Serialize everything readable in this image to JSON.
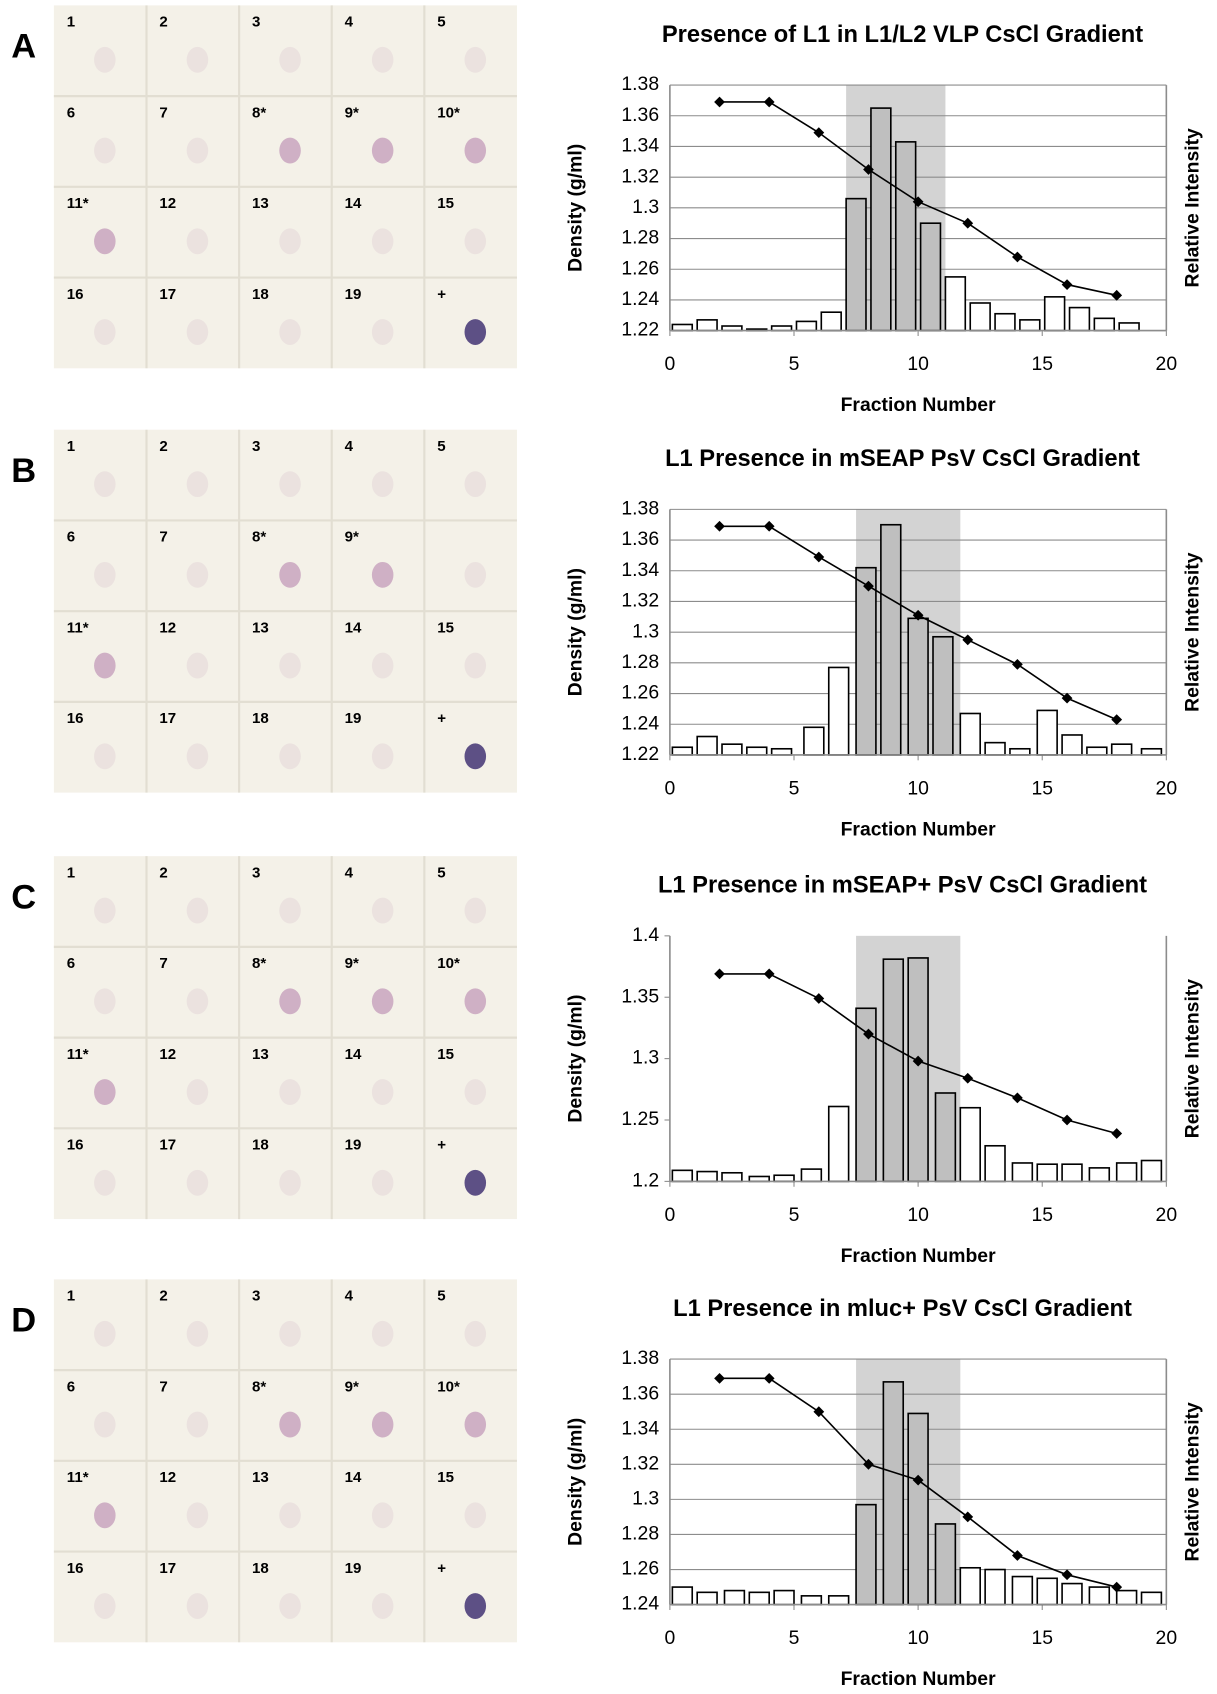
{
  "blots": [
    {
      "letter": "A",
      "labels": [
        "1",
        "2",
        "3",
        "4",
        "5",
        "6",
        "7",
        "8*",
        "9*",
        "10*",
        "11*",
        "12",
        "13",
        "14",
        "15",
        "16",
        "17",
        "18",
        "19",
        "+"
      ]
    },
    {
      "letter": "B",
      "labels": [
        "1",
        "2",
        "3",
        "4",
        "5",
        "6",
        "7",
        "8*",
        "9*",
        null,
        "11*",
        "12",
        "13",
        "14",
        "15",
        "16",
        "17",
        "18",
        "19",
        "+"
      ]
    },
    {
      "letter": "C",
      "labels": [
        "1",
        "2",
        "3",
        "4",
        "5",
        "6",
        "7",
        "8*",
        "9*",
        "10*",
        "11*",
        "12",
        "13",
        "14",
        "15",
        "16",
        "17",
        "18",
        "19",
        "+"
      ]
    },
    {
      "letter": "D",
      "labels": [
        "1",
        "2",
        "3",
        "4",
        "5",
        "6",
        "7",
        "8*",
        "9*",
        "10*",
        "11*",
        "12",
        "13",
        "14",
        "15",
        "16",
        "17",
        "18",
        "19",
        "+"
      ]
    }
  ],
  "chart_data": [
    {
      "type": "bar-line",
      "title": "Presence of L1 in L1/L2 VLP CsCl Gradient",
      "x_label": "Fraction Number",
      "y_label": "Density (g/ml)",
      "y2_label": "Relative Intensity",
      "xlim": [
        0,
        20
      ],
      "xticks": [
        0,
        5,
        10,
        15,
        20
      ],
      "ylim": [
        1.22,
        1.38
      ],
      "yticks": [
        1.22,
        1.24,
        1.26,
        1.28,
        1.3,
        1.32,
        1.34,
        1.36,
        1.38
      ],
      "grid": true,
      "shade": [
        7.1,
        11.1
      ],
      "bars": {
        "x": [
          0.5,
          1.5,
          2.5,
          3.5,
          4.5,
          5.5,
          6.5,
          7.5,
          8.5,
          9.5,
          10.5,
          11.5,
          12.5,
          13.5,
          14.5,
          15.5,
          16.5,
          17.5,
          18.5
        ],
        "values": [
          1.224,
          1.227,
          1.223,
          1.221,
          1.223,
          1.226,
          1.232,
          1.306,
          1.365,
          1.343,
          1.29,
          1.255,
          1.238,
          1.231,
          1.227,
          1.242,
          1.235,
          1.228,
          1.225
        ]
      },
      "line": {
        "x": [
          2,
          4,
          6,
          8,
          10,
          12,
          14,
          16,
          18
        ],
        "values": [
          1.369,
          1.369,
          1.349,
          1.325,
          1.304,
          1.29,
          1.268,
          1.25,
          1.243
        ]
      }
    },
    {
      "type": "bar-line",
      "title": "L1 Presence in mSEAP PsV CsCl Gradient",
      "x_label": "Fraction Number",
      "y_label": "Density (g/ml)",
      "y2_label": "Relative Intensity",
      "xlim": [
        0,
        20
      ],
      "xticks": [
        0,
        5,
        10,
        15,
        20
      ],
      "ylim": [
        1.22,
        1.38
      ],
      "yticks": [
        1.22,
        1.24,
        1.26,
        1.28,
        1.3,
        1.32,
        1.34,
        1.36,
        1.38
      ],
      "grid": true,
      "shade": [
        7.5,
        11.7
      ],
      "bars": {
        "x": [
          0.5,
          1.5,
          2.5,
          3.5,
          4.5,
          5.8,
          6.8,
          7.9,
          8.9,
          10,
          11,
          12.1,
          13.1,
          14.1,
          15.2,
          16.2,
          17.2,
          18.2,
          19.4
        ],
        "values": [
          1.225,
          1.232,
          1.227,
          1.225,
          1.224,
          1.238,
          1.277,
          1.342,
          1.37,
          1.309,
          1.297,
          1.247,
          1.228,
          1.224,
          1.249,
          1.233,
          1.225,
          1.227,
          1.224
        ]
      },
      "line": {
        "x": [
          2,
          4,
          6,
          8,
          10,
          12,
          14,
          16,
          18
        ],
        "values": [
          1.369,
          1.369,
          1.349,
          1.33,
          1.311,
          1.295,
          1.279,
          1.257,
          1.243
        ]
      }
    },
    {
      "type": "bar-line",
      "title": "L1 Presence in mSEAP+ PsV CsCl Gradient",
      "x_label": "Fraction Number",
      "y_label": "Density (g/ml)",
      "y2_label": "Relative Intensity",
      "xlim": [
        0,
        20
      ],
      "xticks": [
        0,
        5,
        10,
        15,
        20
      ],
      "ylim": [
        1.2,
        1.4
      ],
      "yticks": [
        1.2,
        1.25,
        1.3,
        1.35,
        1.4
      ],
      "grid": false,
      "shade": [
        7.5,
        11.7
      ],
      "bars": {
        "x": [
          0.5,
          1.5,
          2.5,
          3.6,
          4.6,
          5.7,
          6.8,
          7.9,
          9,
          10,
          11.1,
          12.1,
          13.1,
          14.2,
          15.2,
          16.2,
          17.3,
          18.4,
          19.4
        ],
        "values": [
          1.209,
          1.208,
          1.207,
          1.204,
          1.205,
          1.21,
          1.261,
          1.341,
          1.381,
          1.382,
          1.272,
          1.26,
          1.229,
          1.215,
          1.214,
          1.214,
          1.211,
          1.215,
          1.217
        ]
      },
      "line": {
        "x": [
          2,
          4,
          6,
          8,
          10,
          12,
          14,
          16,
          18
        ],
        "values": [
          1.369,
          1.369,
          1.349,
          1.32,
          1.298,
          1.284,
          1.268,
          1.25,
          1.239
        ]
      }
    },
    {
      "type": "bar-line",
      "title": "L1 Presence in mluc+ PsV CsCl Gradient",
      "x_label": "Fraction Number",
      "y_label": "Density (g/ml)",
      "y2_label": "Relative Intensity",
      "xlim": [
        0,
        20
      ],
      "xticks": [
        0,
        5,
        10,
        15,
        20
      ],
      "ylim": [
        1.24,
        1.38
      ],
      "yticks": [
        1.24,
        1.26,
        1.28,
        1.3,
        1.32,
        1.34,
        1.36,
        1.38
      ],
      "grid": true,
      "shade": [
        7.5,
        11.7
      ],
      "bars": {
        "x": [
          0.5,
          1.5,
          2.6,
          3.6,
          4.6,
          5.7,
          6.8,
          7.9,
          9,
          10,
          11.1,
          12.1,
          13.1,
          14.2,
          15.2,
          16.2,
          17.3,
          18.4,
          19.4
        ],
        "values": [
          1.25,
          1.247,
          1.248,
          1.247,
          1.248,
          1.245,
          1.245,
          1.297,
          1.367,
          1.349,
          1.286,
          1.261,
          1.26,
          1.256,
          1.255,
          1.252,
          1.25,
          1.248,
          1.247
        ]
      },
      "line": {
        "x": [
          2,
          4,
          6,
          8,
          10,
          12,
          14,
          16,
          18
        ],
        "values": [
          1.369,
          1.369,
          1.35,
          1.32,
          1.311,
          1.29,
          1.268,
          1.257,
          1.25
        ]
      }
    }
  ]
}
